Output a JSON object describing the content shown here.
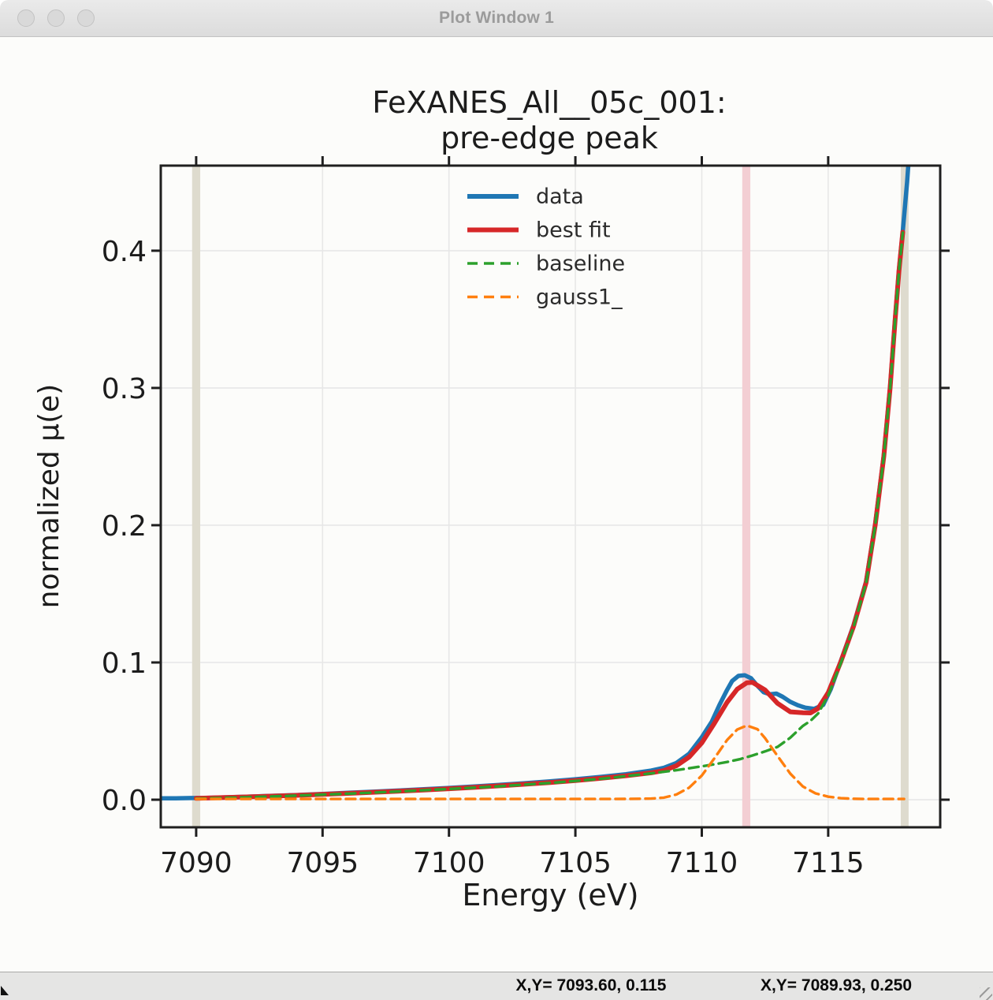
{
  "window": {
    "title": "Plot Window 1"
  },
  "titlebar_buttons": [
    "close",
    "minimize",
    "maximize"
  ],
  "statusbar": {
    "fields": [
      {
        "text": "X,Y= 7093.60, 0.115"
      },
      {
        "text": "X,Y= 7089.93, 0.250"
      }
    ]
  },
  "chart_data": {
    "type": "line",
    "title_lines": [
      "FeXANES_All__05c_001:",
      "pre-edge peak"
    ],
    "xlabel": "Energy (eV)",
    "ylabel": "normalized μ(e)",
    "xlim": [
      7088.6,
      7119.43
    ],
    "ylim": [
      -0.0201,
      0.462
    ],
    "xticks": [
      7090,
      7095,
      7100,
      7105,
      7110,
      7115
    ],
    "xtick_labels": [
      "7090",
      "7095",
      "7100",
      "7105",
      "7110",
      "7115"
    ],
    "yticks": [
      0.0,
      0.1,
      0.2,
      0.3,
      0.4
    ],
    "ytick_labels": [
      "0.0",
      "0.1",
      "0.2",
      "0.3",
      "0.4"
    ],
    "grid": true,
    "grid_color": "#e7e7e7",
    "spine_color": "#1f1f1f",
    "text_color": "#1c1c1c",
    "vspans": [
      {
        "name": "fit-range-low-marker",
        "from": 7089.84,
        "to": 7090.16,
        "color": "#dedbce"
      },
      {
        "name": "peak-center-marker",
        "from": 7111.6,
        "to": 7111.92,
        "color": "#f3ced3"
      },
      {
        "name": "fit-range-high-marker",
        "from": 7117.87,
        "to": 7118.18,
        "color": "#dedbce"
      }
    ],
    "legend": {
      "position": "upper center",
      "entries": [
        {
          "label": "data",
          "color": "#1f77b4",
          "style": "solid"
        },
        {
          "label": "best fit",
          "color": "#d62728",
          "style": "solid"
        },
        {
          "label": "baseline",
          "color": "#2ca02c",
          "style": "dashed"
        },
        {
          "label": "gauss1_",
          "color": "#ff7f0e",
          "style": "dashed"
        }
      ]
    },
    "series": [
      {
        "name": "data",
        "color": "#1f77b4",
        "style": "solid",
        "width": 5.5,
        "points": [
          [
            7088.6,
            0.001
          ],
          [
            7089.2,
            0.001
          ],
          [
            7089.8,
            0.0012
          ],
          [
            7090.4,
            0.0013
          ],
          [
            7091,
            0.0016
          ],
          [
            7092,
            0.0022
          ],
          [
            7093,
            0.0028
          ],
          [
            7094,
            0.0034
          ],
          [
            7095,
            0.0042
          ],
          [
            7096,
            0.005
          ],
          [
            7097,
            0.0058
          ],
          [
            7098,
            0.0067
          ],
          [
            7099,
            0.0076
          ],
          [
            7100,
            0.0086
          ],
          [
            7101,
            0.0096
          ],
          [
            7102,
            0.0108
          ],
          [
            7103,
            0.012
          ],
          [
            7104,
            0.0134
          ],
          [
            7105,
            0.0149
          ],
          [
            7106,
            0.0166
          ],
          [
            7107,
            0.0186
          ],
          [
            7108,
            0.0212
          ],
          [
            7108.5,
            0.0232
          ],
          [
            7109,
            0.0268
          ],
          [
            7109.5,
            0.0335
          ],
          [
            7110,
            0.0455
          ],
          [
            7110.4,
            0.057
          ],
          [
            7110.7,
            0.069
          ],
          [
            7111,
            0.08
          ],
          [
            7111.2,
            0.0865
          ],
          [
            7111.45,
            0.0902
          ],
          [
            7111.7,
            0.0907
          ],
          [
            7111.95,
            0.0885
          ],
          [
            7112.2,
            0.083
          ],
          [
            7112.45,
            0.0783
          ],
          [
            7112.7,
            0.0768
          ],
          [
            7112.95,
            0.0773
          ],
          [
            7113.2,
            0.075
          ],
          [
            7113.5,
            0.0713
          ],
          [
            7113.8,
            0.0688
          ],
          [
            7114.1,
            0.067
          ],
          [
            7114.45,
            0.0662
          ],
          [
            7114.8,
            0.069
          ],
          [
            7115.1,
            0.0805
          ],
          [
            7115.5,
            0.101
          ],
          [
            7116,
            0.127
          ],
          [
            7116.5,
            0.159
          ],
          [
            7116.86,
            0.201
          ],
          [
            7117.2,
            0.251
          ],
          [
            7117.45,
            0.301
          ],
          [
            7117.65,
            0.351
          ],
          [
            7117.8,
            0.386
          ],
          [
            7117.95,
            0.414
          ],
          [
            7118.05,
            0.435
          ],
          [
            7118.12,
            0.45
          ],
          [
            7118.2,
            0.47
          ]
        ]
      },
      {
        "name": "best fit",
        "color": "#d62728",
        "style": "solid",
        "width": 6,
        "points": [
          [
            7090,
            0.001
          ],
          [
            7091,
            0.0015
          ],
          [
            7092,
            0.002
          ],
          [
            7093,
            0.0026
          ],
          [
            7094,
            0.0032
          ],
          [
            7095,
            0.0039
          ],
          [
            7096,
            0.0046
          ],
          [
            7097,
            0.0054
          ],
          [
            7098,
            0.0062
          ],
          [
            7099,
            0.0071
          ],
          [
            7100,
            0.008
          ],
          [
            7101,
            0.009
          ],
          [
            7102,
            0.0101
          ],
          [
            7103,
            0.0113
          ],
          [
            7104,
            0.0125
          ],
          [
            7105,
            0.014
          ],
          [
            7106,
            0.0156
          ],
          [
            7107,
            0.0174
          ],
          [
            7108,
            0.0196
          ],
          [
            7108.5,
            0.0212
          ],
          [
            7109,
            0.0248
          ],
          [
            7109.5,
            0.0311
          ],
          [
            7110,
            0.0414
          ],
          [
            7110.5,
            0.0557
          ],
          [
            7111,
            0.071
          ],
          [
            7111.4,
            0.0805
          ],
          [
            7111.78,
            0.0852
          ],
          [
            7112,
            0.0855
          ],
          [
            7112.5,
            0.08
          ],
          [
            7113,
            0.0702
          ],
          [
            7113.5,
            0.064
          ],
          [
            7114,
            0.0634
          ],
          [
            7114.3,
            0.0632
          ],
          [
            7114.6,
            0.0665
          ],
          [
            7115,
            0.078
          ],
          [
            7115.5,
            0.1005
          ],
          [
            7116,
            0.1262
          ],
          [
            7116.5,
            0.1582
          ],
          [
            7116.86,
            0.2003
          ],
          [
            7117.2,
            0.2503
          ],
          [
            7117.45,
            0.3003
          ],
          [
            7117.65,
            0.3503
          ],
          [
            7117.8,
            0.3853
          ],
          [
            7117.95,
            0.4135
          ]
        ]
      },
      {
        "name": "baseline",
        "color": "#2ca02c",
        "style": "dashed",
        "width": 3.4,
        "points": [
          [
            7090,
            0.0008
          ],
          [
            7092,
            0.0018
          ],
          [
            7094,
            0.003
          ],
          [
            7096,
            0.0044
          ],
          [
            7098,
            0.006
          ],
          [
            7100,
            0.0078
          ],
          [
            7102,
            0.0098
          ],
          [
            7104,
            0.0122
          ],
          [
            7106,
            0.0152
          ],
          [
            7108,
            0.0192
          ],
          [
            7109,
            0.0215
          ],
          [
            7110,
            0.0243
          ],
          [
            7110.5,
            0.0258
          ],
          [
            7111,
            0.0275
          ],
          [
            7111.5,
            0.0295
          ],
          [
            7112,
            0.0322
          ],
          [
            7112.5,
            0.0352
          ],
          [
            7113,
            0.0385
          ],
          [
            7113.5,
            0.0452
          ],
          [
            7114,
            0.0538
          ],
          [
            7114.3,
            0.0575
          ],
          [
            7114.6,
            0.0628
          ],
          [
            7115,
            0.076
          ],
          [
            7115.5,
            0.0995
          ],
          [
            7116,
            0.1256
          ],
          [
            7116.5,
            0.1578
          ],
          [
            7116.86,
            0.2
          ],
          [
            7117.2,
            0.25
          ],
          [
            7117.45,
            0.3
          ],
          [
            7117.65,
            0.35
          ],
          [
            7117.8,
            0.385
          ],
          [
            7117.95,
            0.4132
          ]
        ]
      },
      {
        "name": "gauss1_",
        "color": "#ff7f0e",
        "style": "dashed",
        "width": 3.4,
        "points": [
          [
            7090,
            0.0005
          ],
          [
            7092,
            0.0005
          ],
          [
            7094,
            0.0005
          ],
          [
            7096,
            0.0005
          ],
          [
            7098,
            0.0005
          ],
          [
            7100,
            0.0005
          ],
          [
            7102,
            0.0005
          ],
          [
            7104,
            0.0005
          ],
          [
            7106,
            0.0005
          ],
          [
            7107,
            0.0006
          ],
          [
            7108,
            0.0008
          ],
          [
            7108.5,
            0.0015
          ],
          [
            7109,
            0.0038
          ],
          [
            7109.5,
            0.0088
          ],
          [
            7110,
            0.0176
          ],
          [
            7110.5,
            0.0302
          ],
          [
            7111,
            0.0435
          ],
          [
            7111.4,
            0.0511
          ],
          [
            7111.78,
            0.054
          ],
          [
            7112.2,
            0.0514
          ],
          [
            7112.5,
            0.0449
          ],
          [
            7113,
            0.0318
          ],
          [
            7113.5,
            0.019
          ],
          [
            7114,
            0.0096
          ],
          [
            7114.5,
            0.0046
          ],
          [
            7115,
            0.0022
          ],
          [
            7115.5,
            0.0011
          ],
          [
            7116,
            0.0007
          ],
          [
            7116.5,
            0.0005
          ],
          [
            7117,
            0.0005
          ],
          [
            7117.5,
            0.0005
          ],
          [
            7118,
            0.0005
          ]
        ]
      }
    ],
    "gauss1_params": {
      "center": 7111.78,
      "sigma": 1.18,
      "height": 0.0535
    }
  }
}
